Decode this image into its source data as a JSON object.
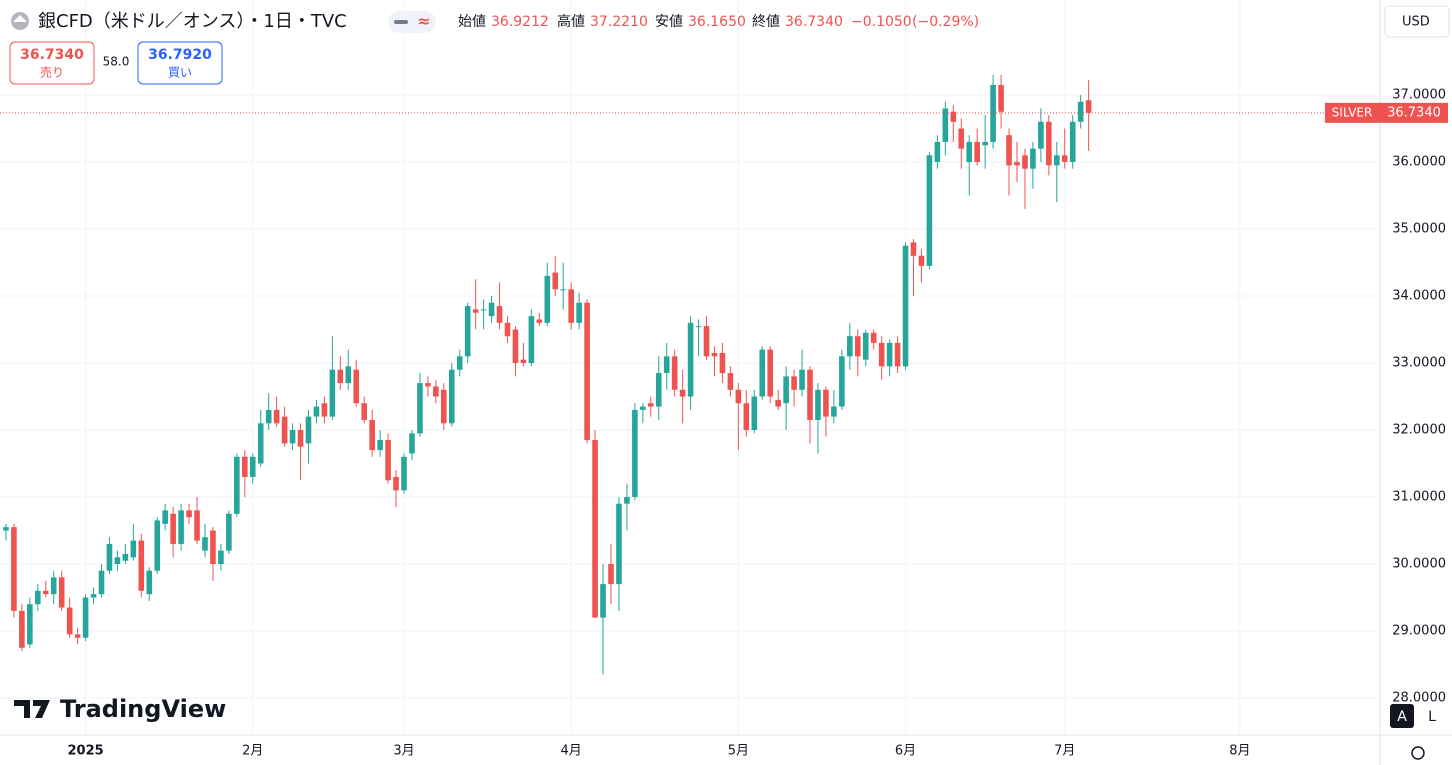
{
  "chart_data": {
    "type": "candlestick",
    "title": "銀CFD（米ドル／オンス）・1日・TVC",
    "readout": [
      {
        "name": "始値",
        "value": {
          "value": 36.9212,
          "label": "36.9212"
        }
      },
      {
        "name": "高値",
        "value": {
          "value": 37.221,
          "label": "37.2210"
        }
      },
      {
        "name": "安値",
        "value": {
          "value": 36.165,
          "label": "36.1650"
        }
      },
      {
        "name": "終値",
        "value": {
          "value": 36.734,
          "label": "36.7340"
        }
      }
    ],
    "change": {
      "value": -0.105,
      "label": "−0.1050"
    },
    "change_pct": {
      "value": -0.29,
      "label": "(−0.29%)"
    },
    "sell": {
      "name": "売り",
      "price": {
        "value": 36.734,
        "label": "36.7340"
      }
    },
    "spread": {
      "value": 58,
      "label": "58.0"
    },
    "buy": {
      "name": "買い",
      "price": {
        "value": 36.792,
        "label": "36.7920"
      }
    },
    "symbol": "SILVER",
    "last_price": {
      "value": 36.734,
      "label": "36.7340"
    },
    "currency": "USD",
    "watermark": "TradingView",
    "scale_buttons": [
      "A",
      "L"
    ],
    "up_color": "#26a69a",
    "down_color": "#ef5350",
    "grid": true,
    "ylim": [
      27.448,
      38.418
    ],
    "yticks": [
      {
        "value": 28,
        "label": "28.0000"
      },
      {
        "value": 29,
        "label": "29.0000"
      },
      {
        "value": 30,
        "label": "30.0000"
      },
      {
        "value": 31,
        "label": "31.0000"
      },
      {
        "value": 32,
        "label": "32.0000"
      },
      {
        "value": 33,
        "label": "33.0000"
      },
      {
        "value": 34,
        "label": "34.0000"
      },
      {
        "value": 35,
        "label": "35.0000"
      },
      {
        "value": 36,
        "label": "36.0000"
      },
      {
        "value": 37,
        "label": "37.0000"
      }
    ],
    "xlim": [
      -0.75,
      172.6
    ],
    "xticks": [
      {
        "value": 10,
        "label": "2025"
      },
      {
        "value": 31,
        "label": "2月"
      },
      {
        "value": 50,
        "label": "3月"
      },
      {
        "value": 71,
        "label": "4月"
      },
      {
        "value": 92,
        "label": "5月"
      },
      {
        "value": 113,
        "label": "6月"
      },
      {
        "value": 133,
        "label": "7月"
      },
      {
        "value": 155,
        "label": "8月"
      }
    ],
    "ohlc": [
      [
        30.5,
        30.6,
        30.35,
        30.55
      ],
      [
        30.55,
        30.6,
        29.2,
        29.3
      ],
      [
        29.3,
        29.4,
        28.7,
        28.75
      ],
      [
        28.8,
        29.5,
        28.75,
        29.4
      ],
      [
        29.4,
        29.7,
        29.3,
        29.6
      ],
      [
        29.6,
        29.75,
        29.5,
        29.55
      ],
      [
        29.55,
        29.9,
        29.4,
        29.8
      ],
      [
        29.8,
        29.9,
        29.3,
        29.35
      ],
      [
        29.35,
        29.5,
        28.9,
        28.95
      ],
      [
        28.95,
        29.05,
        28.8,
        28.9
      ],
      [
        28.9,
        29.55,
        28.85,
        29.5
      ],
      [
        29.5,
        29.65,
        29.4,
        29.55
      ],
      [
        29.55,
        30.0,
        29.5,
        29.9
      ],
      [
        29.9,
        30.4,
        29.85,
        30.3
      ],
      [
        30.0,
        30.2,
        29.9,
        30.1
      ],
      [
        30.05,
        30.3,
        30.0,
        30.15
      ],
      [
        30.1,
        30.6,
        30.05,
        30.35
      ],
      [
        30.35,
        30.45,
        29.5,
        29.6
      ],
      [
        29.55,
        29.95,
        29.45,
        29.9
      ],
      [
        29.9,
        30.7,
        29.85,
        30.65
      ],
      [
        30.6,
        30.9,
        30.5,
        30.8
      ],
      [
        30.75,
        30.85,
        30.1,
        30.3
      ],
      [
        30.3,
        30.9,
        30.2,
        30.8
      ],
      [
        30.8,
        30.9,
        30.6,
        30.7
      ],
      [
        30.8,
        31.0,
        30.3,
        30.35
      ],
      [
        30.2,
        30.6,
        30.1,
        30.4
      ],
      [
        30.5,
        30.55,
        29.75,
        30.0
      ],
      [
        30.0,
        30.3,
        29.9,
        30.2
      ],
      [
        30.2,
        30.8,
        30.15,
        30.75
      ],
      [
        30.75,
        31.65,
        30.7,
        31.6
      ],
      [
        31.6,
        31.7,
        31.0,
        31.3
      ],
      [
        31.3,
        31.65,
        31.2,
        31.6
      ],
      [
        31.5,
        32.3,
        31.45,
        32.1
      ],
      [
        32.1,
        32.55,
        32.0,
        32.3
      ],
      [
        32.3,
        32.5,
        32.05,
        32.1
      ],
      [
        32.2,
        32.35,
        31.75,
        31.8
      ],
      [
        31.8,
        32.1,
        31.7,
        32.0
      ],
      [
        32.0,
        32.1,
        31.25,
        31.75
      ],
      [
        31.8,
        32.3,
        31.5,
        32.2
      ],
      [
        32.2,
        32.45,
        32.1,
        32.35
      ],
      [
        32.4,
        32.5,
        32.1,
        32.2
      ],
      [
        32.2,
        33.4,
        32.15,
        32.9
      ],
      [
        32.9,
        33.1,
        32.6,
        32.7
      ],
      [
        32.7,
        33.2,
        32.6,
        32.95
      ],
      [
        32.9,
        33.05,
        32.35,
        32.4
      ],
      [
        32.4,
        32.5,
        32.1,
        32.15
      ],
      [
        32.15,
        32.3,
        31.6,
        31.7
      ],
      [
        31.7,
        32.0,
        31.6,
        31.85
      ],
      [
        31.85,
        31.95,
        31.2,
        31.25
      ],
      [
        31.3,
        31.4,
        30.85,
        31.1
      ],
      [
        31.1,
        31.65,
        31.05,
        31.6
      ],
      [
        31.65,
        32.0,
        31.55,
        31.95
      ],
      [
        31.95,
        32.85,
        31.9,
        32.7
      ],
      [
        32.7,
        32.8,
        32.5,
        32.65
      ],
      [
        32.65,
        32.75,
        32.4,
        32.5
      ],
      [
        32.6,
        32.7,
        32.0,
        32.1
      ],
      [
        32.1,
        33.0,
        32.05,
        32.9
      ],
      [
        32.9,
        33.2,
        32.8,
        33.1
      ],
      [
        33.1,
        33.9,
        33.0,
        33.85
      ],
      [
        33.8,
        34.25,
        33.5,
        33.75
      ],
      [
        33.8,
        33.95,
        33.5,
        33.8
      ],
      [
        33.7,
        34.0,
        33.6,
        33.9
      ],
      [
        33.85,
        34.2,
        33.5,
        33.6
      ],
      [
        33.6,
        33.7,
        33.3,
        33.4
      ],
      [
        33.5,
        33.55,
        32.8,
        33.0
      ],
      [
        33.05,
        33.3,
        32.95,
        33.0
      ],
      [
        33.0,
        33.8,
        32.95,
        33.7
      ],
      [
        33.65,
        33.75,
        33.55,
        33.6
      ],
      [
        33.6,
        34.5,
        33.55,
        34.3
      ],
      [
        34.35,
        34.6,
        34.0,
        34.1
      ],
      [
        34.1,
        34.5,
        33.8,
        34.1
      ],
      [
        34.1,
        34.2,
        33.5,
        33.6
      ],
      [
        33.6,
        34.05,
        33.5,
        33.9
      ],
      [
        33.9,
        33.95,
        31.8,
        31.85
      ],
      [
        31.85,
        32.0,
        29.2,
        29.2
      ],
      [
        29.2,
        30.0,
        28.35,
        29.7
      ],
      [
        30.0,
        30.3,
        29.4,
        29.7
      ],
      [
        29.7,
        31.0,
        29.3,
        30.9
      ],
      [
        30.9,
        31.2,
        30.5,
        31.0
      ],
      [
        31.0,
        32.4,
        30.95,
        32.3
      ],
      [
        32.3,
        32.4,
        32.1,
        32.35
      ],
      [
        32.4,
        32.5,
        32.2,
        32.35
      ],
      [
        32.35,
        33.1,
        32.15,
        32.85
      ],
      [
        32.85,
        33.3,
        32.6,
        33.1
      ],
      [
        33.1,
        33.2,
        32.5,
        32.6
      ],
      [
        32.6,
        32.9,
        32.1,
        32.5
      ],
      [
        32.5,
        33.7,
        32.3,
        33.6
      ],
      [
        33.55,
        33.65,
        33.1,
        33.55
      ],
      [
        33.55,
        33.7,
        33.05,
        33.1
      ],
      [
        33.15,
        33.25,
        32.8,
        33.1
      ],
      [
        33.15,
        33.3,
        32.7,
        32.85
      ],
      [
        32.85,
        32.95,
        32.5,
        32.6
      ],
      [
        32.6,
        32.7,
        31.7,
        32.4
      ],
      [
        32.4,
        32.6,
        31.9,
        32.0
      ],
      [
        32.0,
        32.6,
        31.95,
        32.5
      ],
      [
        32.5,
        33.25,
        32.45,
        33.2
      ],
      [
        33.2,
        33.25,
        32.4,
        32.5
      ],
      [
        32.45,
        32.6,
        32.3,
        32.35
      ],
      [
        32.4,
        32.95,
        32.0,
        32.8
      ],
      [
        32.8,
        32.9,
        32.35,
        32.6
      ],
      [
        32.6,
        33.2,
        32.5,
        32.9
      ],
      [
        32.9,
        32.95,
        31.8,
        32.15
      ],
      [
        32.15,
        32.7,
        31.65,
        32.6
      ],
      [
        32.6,
        32.65,
        31.9,
        32.2
      ],
      [
        32.2,
        32.6,
        32.1,
        32.35
      ],
      [
        32.35,
        33.2,
        32.3,
        33.1
      ],
      [
        33.1,
        33.6,
        32.9,
        33.4
      ],
      [
        33.4,
        33.5,
        32.8,
        33.1
      ],
      [
        33.05,
        33.5,
        32.95,
        33.45
      ],
      [
        33.45,
        33.5,
        33.2,
        33.3
      ],
      [
        33.3,
        33.4,
        32.75,
        32.95
      ],
      [
        32.95,
        33.35,
        32.8,
        33.3
      ],
      [
        33.3,
        33.4,
        32.85,
        32.95
      ],
      [
        32.95,
        34.8,
        32.9,
        34.75
      ],
      [
        34.8,
        34.85,
        34.0,
        34.6
      ],
      [
        34.6,
        34.7,
        34.2,
        34.45
      ],
      [
        34.45,
        36.15,
        34.4,
        36.1
      ],
      [
        36.0,
        36.4,
        35.9,
        36.3
      ],
      [
        36.3,
        36.9,
        36.1,
        36.8
      ],
      [
        36.75,
        36.85,
        36.3,
        36.6
      ],
      [
        36.5,
        36.65,
        35.9,
        36.2
      ],
      [
        36.0,
        36.4,
        35.5,
        36.3
      ],
      [
        36.3,
        36.5,
        35.95,
        36.0
      ],
      [
        36.25,
        36.7,
        35.9,
        36.3
      ],
      [
        36.3,
        37.3,
        36.2,
        37.15
      ],
      [
        37.15,
        37.3,
        36.5,
        36.75
      ],
      [
        36.4,
        36.5,
        35.5,
        35.95
      ],
      [
        36.0,
        36.3,
        35.7,
        35.95
      ],
      [
        36.1,
        36.2,
        35.3,
        35.9
      ],
      [
        35.9,
        36.3,
        35.6,
        36.2
      ],
      [
        36.2,
        36.8,
        36.0,
        36.6
      ],
      [
        36.6,
        36.7,
        35.8,
        35.95
      ],
      [
        35.95,
        36.3,
        35.4,
        36.1
      ],
      [
        36.1,
        36.5,
        35.9,
        36.0
      ],
      [
        36.0,
        36.7,
        35.9,
        36.6
      ],
      [
        36.6,
        37.0,
        36.5,
        36.9
      ],
      [
        36.9212,
        37.221,
        36.165,
        36.734
      ]
    ]
  }
}
